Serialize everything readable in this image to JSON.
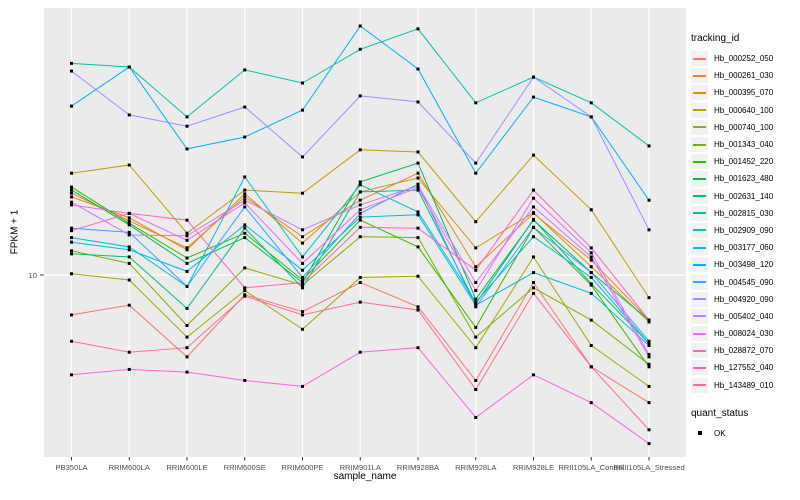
{
  "figure": {
    "background": "#FFFFFF",
    "panel_background": "#EBEBEB",
    "gridline_color": "#FFFFFF",
    "tick_color": "#333333",
    "tick_label_color": "#4D4D4D",
    "point_color": "#000000"
  },
  "axes": {
    "x_title": "sample_name",
    "y_title": "FPKM + 1",
    "y_tick_labels": [
      "10"
    ],
    "x_categories": [
      "PB350LA",
      "RRIM600LA",
      "RRIM600LE",
      "RRIM600SE",
      "RRIM600PE",
      "RRIM901LA",
      "RRIM928BA",
      "RRIM928LA",
      "RRIM928LE",
      "RRII105LA_Control",
      "RRII105LA_Stressed"
    ]
  },
  "legend": {
    "title": "tracking_id"
  },
  "legend2": {
    "title": "quant_status",
    "items": [
      {
        "label": "OK",
        "marker": "black-square"
      }
    ]
  },
  "chart_data": {
    "type": "line",
    "title": "",
    "xlabel": "sample_name",
    "ylabel": "FPKM + 1",
    "x_categories": [
      "PB350LA",
      "RRIM600LA",
      "RRIM600LE",
      "RRIM600SE",
      "RRIM600PE",
      "RRIM901LA",
      "RRIM928BA",
      "RRIM928LA",
      "RRIM928LE",
      "RRII105LA_Control",
      "RRII105LA_Stressed"
    ],
    "y_axis": {
      "scale": "log10",
      "ticks": [
        10
      ],
      "approx_range": [
        2.4,
        80
      ]
    },
    "legend_position": "right",
    "grid": "major-only",
    "point_marker": "small black square (quant_status OK)",
    "series": [
      {
        "name": "Hb_000252_050",
        "color": "#F8766D",
        "values": [
          7.2,
          7.8,
          5.1,
          8.5,
          7.4,
          9.4,
          7.7,
          4.2,
          9.4,
          4.7,
          3.5
        ]
      },
      {
        "name": "Hb_000261_030",
        "color": "#EA8331",
        "values": [
          19.6,
          15.6,
          12.5,
          19.0,
          13.7,
          18.5,
          23.1,
          10.7,
          16.6,
          11.3,
          6.9
        ]
      },
      {
        "name": "Hb_000395_070",
        "color": "#D89000",
        "values": [
          19.0,
          16.0,
          12.3,
          19.5,
          13.0,
          19.8,
          22.2,
          12.5,
          16.7,
          10.7,
          6.8
        ]
      },
      {
        "name": "Hb_000640_100",
        "color": "#C09B00",
        "values": [
          23.1,
          24.7,
          14.1,
          20.1,
          19.6,
          28.0,
          27.5,
          15.5,
          26.8,
          17.1,
          8.3
        ]
      },
      {
        "name": "Hb_000740_100",
        "color": "#A3A500",
        "values": [
          10.1,
          9.6,
          6.0,
          8.8,
          6.4,
          9.8,
          9.9,
          5.5,
          11.6,
          5.6,
          4.0
        ]
      },
      {
        "name": "Hb_001343_040",
        "color": "#7CAE00",
        "values": [
          12.2,
          11.0,
          6.6,
          10.6,
          9.2,
          13.7,
          13.6,
          6.0,
          9.0,
          6.9,
          4.8
        ]
      },
      {
        "name": "Hb_001452_220",
        "color": "#39B600",
        "values": [
          20.6,
          15.3,
          11.5,
          14.1,
          9.6,
          15.7,
          12.6,
          6.5,
          14.8,
          9.2,
          4.7
        ]
      },
      {
        "name": "Hb_001623_480",
        "color": "#00BB4E",
        "values": [
          20.1,
          15.1,
          11.0,
          13.6,
          9.4,
          21.5,
          25.1,
          8.2,
          15.7,
          10.2,
          6.9
        ]
      },
      {
        "name": "Hb_002631_140",
        "color": "#00BF7D",
        "values": [
          11.9,
          11.6,
          7.6,
          14.7,
          9.0,
          19.8,
          20.1,
          7.9,
          15.8,
          9.3,
          5.7
        ]
      },
      {
        "name": "Hb_002815_030",
        "color": "#00C1A3",
        "values": [
          57.0,
          55.3,
          36.7,
          54.0,
          48.5,
          64.0,
          75.7,
          41.2,
          50.9,
          41.2,
          28.9
        ]
      },
      {
        "name": "Hb_002909_090",
        "color": "#00BFC4",
        "values": [
          13.6,
          12.6,
          9.1,
          22.4,
          11.6,
          21.0,
          16.8,
          8.0,
          13.7,
          9.8,
          5.7
        ]
      },
      {
        "name": "Hb_003177_060",
        "color": "#00BAE0",
        "values": [
          13.1,
          12.3,
          10.3,
          15.1,
          10.4,
          16.1,
          16.4,
          7.8,
          10.2,
          8.6,
          5.6
        ]
      },
      {
        "name": "Hb_003498_120",
        "color": "#00B0F6",
        "values": [
          40.1,
          55.3,
          28.2,
          31.1,
          38.8,
          77.5,
          54.4,
          23.1,
          43.2,
          36.7,
          18.5
        ]
      },
      {
        "name": "Hb_004545_090",
        "color": "#35A2FF",
        "values": [
          14.7,
          14.2,
          9.1,
          17.5,
          9.8,
          16.6,
          21.1,
          7.7,
          14.8,
          10.2,
          5.8
        ]
      },
      {
        "name": "Hb_004920_090",
        "color": "#9590FF",
        "values": [
          53.5,
          37.3,
          34.0,
          39.8,
          26.4,
          43.6,
          41.5,
          25.1,
          50.9,
          36.7,
          14.5
        ]
      },
      {
        "name": "Hb_005402_040",
        "color": "#C77CFF",
        "values": [
          18.2,
          13.9,
          13.8,
          18.5,
          14.5,
          17.8,
          20.8,
          9.4,
          17.5,
          11.6,
          5.1
        ]
      },
      {
        "name": "Hb_008024_030",
        "color": "#E76BF3",
        "values": [
          17.8,
          16.6,
          13.3,
          18.1,
          11.0,
          17.1,
          20.5,
          8.8,
          18.8,
          12.0,
          5.2
        ]
      },
      {
        "name": "Hb_028872_070",
        "color": "#FA62DB",
        "values": [
          4.4,
          4.6,
          4.5,
          4.2,
          4.0,
          5.3,
          5.5,
          3.1,
          4.4,
          3.5,
          2.5
        ]
      },
      {
        "name": "Hb_127552_040",
        "color": "#FF62BC",
        "values": [
          14.4,
          16.6,
          15.7,
          9.0,
          9.4,
          14.8,
          14.7,
          10.4,
          20.1,
          12.5,
          6.9
        ]
      },
      {
        "name": "Hb_143489_010",
        "color": "#FF6A98",
        "values": [
          5.8,
          5.3,
          5.5,
          8.4,
          7.2,
          8.0,
          7.5,
          3.9,
          8.6,
          4.7,
          2.8
        ]
      }
    ]
  }
}
